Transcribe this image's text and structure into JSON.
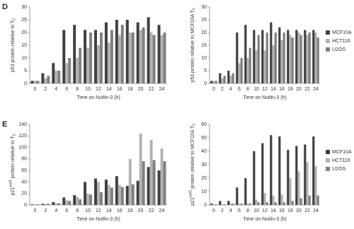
{
  "chart_data": [
    {
      "type": "bar",
      "panel": "D",
      "ylabel": {
        "text": "p53 protein relative to T",
        "sub": "0"
      },
      "xlabel": "Time on Nutlin-3 (h)",
      "categories": [
        "0",
        "2",
        "4",
        "6",
        "8",
        "10",
        "12",
        "14",
        "16",
        "18",
        "20",
        "22",
        "24"
      ],
      "series": [
        {
          "name": "MCF10A",
          "color": "#404040",
          "values": [
            1,
            4,
            8,
            21,
            23,
            21,
            21,
            24,
            25,
            25,
            24,
            26,
            23
          ]
        },
        {
          "name": "HCT116",
          "color": "#b3b3b3",
          "values": [
            1,
            2,
            5,
            8,
            10,
            14,
            15,
            16,
            19,
            20,
            21,
            20,
            19
          ]
        },
        {
          "name": "U2OS",
          "color": "#808080",
          "values": [
            1,
            3,
            5,
            10,
            14,
            20,
            20,
            21,
            23,
            20,
            22,
            19,
            20
          ]
        }
      ],
      "ylim": [
        0,
        30
      ],
      "yticks": [
        0,
        5,
        10,
        15,
        20,
        25,
        30
      ],
      "legend": false
    },
    {
      "type": "bar",
      "ylabel": {
        "text": "p53 protein relative to MCF10A T",
        "sub": "0"
      },
      "xlabel": "Time on Nutlin-3 (h)",
      "categories": [
        "0",
        "2",
        "4",
        "6",
        "8",
        "10",
        "12",
        "14",
        "16",
        "18",
        "20",
        "22",
        "24"
      ],
      "series": [
        {
          "name": "MCF10A",
          "color": "#404040",
          "values": [
            1,
            4,
            5,
            20,
            23,
            21,
            21,
            24,
            22,
            21,
            21,
            21,
            21
          ]
        },
        {
          "name": "HCT116",
          "color": "#b3b3b3",
          "values": [
            1,
            2,
            3,
            8,
            10,
            13,
            13,
            15,
            17,
            19,
            20,
            19,
            20
          ]
        },
        {
          "name": "U2OS",
          "color": "#808080",
          "values": [
            1,
            3,
            4,
            10,
            14,
            19,
            20,
            20,
            20,
            18,
            19,
            20,
            18
          ]
        }
      ],
      "ylim": [
        0,
        30
      ],
      "yticks": [
        0,
        5,
        10,
        15,
        20,
        25,
        30
      ],
      "legend": true
    },
    {
      "type": "bar",
      "panel": "E",
      "ylabel": {
        "prefix": "p21",
        "sup": "waf1",
        "text": " protein relative to T",
        "sub": "0"
      },
      "xlabel": "Time on Nutlin-3 (h)",
      "categories": [
        "0",
        "2",
        "4",
        "6",
        "8",
        "10",
        "12",
        "14",
        "16",
        "18",
        "20",
        "22",
        "24"
      ],
      "series": [
        {
          "name": "MCF10A",
          "color": "#404040",
          "values": [
            1,
            2,
            5,
            13,
            17,
            40,
            46,
            44,
            50,
            33,
            42,
            66,
            60
          ]
        },
        {
          "name": "HCT116",
          "color": "#b3b3b3",
          "values": [
            1,
            2,
            3,
            8,
            14,
            20,
            40,
            35,
            35,
            80,
            124,
            113,
            98
          ]
        },
        {
          "name": "U2OS",
          "color": "#808080",
          "values": [
            1,
            2,
            3,
            7,
            10,
            18,
            22,
            30,
            31,
            36,
            76,
            78,
            76
          ]
        }
      ],
      "ylim": [
        0,
        140
      ],
      "yticks": [
        0,
        20,
        40,
        60,
        80,
        100,
        120,
        140
      ],
      "legend": false
    },
    {
      "type": "bar",
      "ylabel": {
        "prefix": "p21",
        "sup": "waf1",
        "text": " protein relative to MCF10A T",
        "sub": "0"
      },
      "xlabel": "Time on Nutlin-3 (h)",
      "categories": [
        "0",
        "2",
        "4",
        "6",
        "8",
        "10",
        "12",
        "14",
        "16",
        "18",
        "20",
        "22",
        "24"
      ],
      "series": [
        {
          "name": "MCF10A",
          "color": "#404040",
          "values": [
            1,
            3,
            3,
            13,
            20,
            40,
            46,
            52,
            51,
            41,
            44,
            45,
            51
          ]
        },
        {
          "name": "HCT116",
          "color": "#b3b3b3",
          "values": [
            0.5,
            0.5,
            1,
            1,
            1,
            4,
            9,
            7,
            8,
            20,
            25,
            32,
            29
          ]
        },
        {
          "name": "U2OS",
          "color": "#808080",
          "values": [
            0.5,
            0.5,
            1,
            1,
            1,
            2,
            2,
            2,
            2,
            3,
            5,
            7,
            7
          ]
        }
      ],
      "ylim": [
        0,
        60
      ],
      "yticks": [
        0,
        10,
        20,
        30,
        40,
        50,
        60
      ],
      "legend": true
    }
  ]
}
